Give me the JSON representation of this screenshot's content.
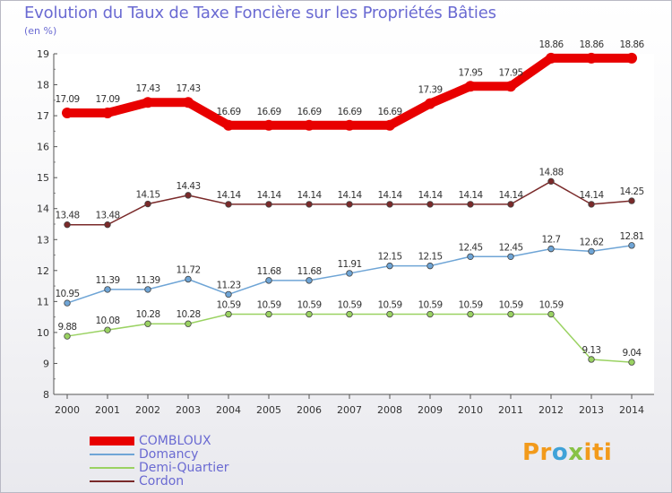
{
  "header": {
    "title": "Evolution du Taux de Taxe Foncière sur les Propriétés Bâties",
    "subtitle": "(en %)"
  },
  "logo": {
    "parts": [
      "Pr",
      "o",
      "x",
      "iti"
    ]
  },
  "chart_data": {
    "type": "line",
    "title": "Evolution du Taux de Taxe Foncière sur les Propriétés Bâties",
    "ylabel": "(en %)",
    "xlabel": "",
    "ylim": [
      8,
      19
    ],
    "yticks": [
      "8",
      "9",
      "10",
      "11",
      "12",
      "13",
      "14",
      "15",
      "16",
      "17",
      "18",
      "19"
    ],
    "categories": [
      "2000",
      "2001",
      "2002",
      "2003",
      "2004",
      "2005",
      "2006",
      "2007",
      "2008",
      "2009",
      "2010",
      "2011",
      "2012",
      "2013",
      "2014"
    ],
    "series": [
      {
        "name": "COMBLOUX",
        "color": "#e80000",
        "emphasis": true,
        "values": [
          17.09,
          17.09,
          17.43,
          17.43,
          16.69,
          16.69,
          16.69,
          16.69,
          16.69,
          17.39,
          17.95,
          17.95,
          18.86,
          18.86,
          18.86
        ],
        "labels": [
          "17.09",
          "17.09",
          "17.43",
          "17.43",
          "16.69",
          "16.69",
          "16.69",
          "16.69",
          "16.69",
          "17.39",
          "17.95",
          "17.95",
          "18.86",
          "18.86",
          "18.86"
        ]
      },
      {
        "name": "Domancy",
        "color": "#6fa5d6",
        "emphasis": false,
        "values": [
          10.95,
          11.39,
          11.39,
          11.72,
          11.23,
          11.68,
          11.68,
          11.91,
          12.15,
          12.15,
          12.45,
          12.45,
          12.7,
          12.62,
          12.81
        ],
        "labels": [
          "10.95",
          "11.39",
          "11.39",
          "11.72",
          "11.23",
          "11.68",
          "11.68",
          "11.91",
          "12.15",
          "12.15",
          "12.45",
          "12.45",
          "12.7",
          "12.62",
          "12.81"
        ]
      },
      {
        "name": "Demi-Quartier",
        "color": "#9ad262",
        "emphasis": false,
        "values": [
          9.88,
          10.08,
          10.28,
          10.28,
          10.59,
          10.59,
          10.59,
          10.59,
          10.59,
          10.59,
          10.59,
          10.59,
          10.59,
          9.13,
          9.04
        ],
        "labels": [
          "9.88",
          "10.08",
          "10.28",
          "10.28",
          "10.59",
          "10.59",
          "10.59",
          "10.59",
          "10.59",
          "10.59",
          "10.59",
          "10.59",
          "10.59",
          "9.13",
          "9.04"
        ]
      },
      {
        "name": "Cordon",
        "color": "#7a2a2a",
        "emphasis": false,
        "values": [
          13.48,
          13.48,
          14.15,
          14.43,
          14.14,
          14.14,
          14.14,
          14.14,
          14.14,
          14.14,
          14.14,
          14.14,
          14.88,
          14.14,
          14.25
        ],
        "labels": [
          "13.48",
          "13.48",
          "14.15",
          "14.43",
          "14.14",
          "14.14",
          "14.14",
          "14.14",
          "14.14",
          "14.14",
          "14.14",
          "14.14",
          "14.88",
          "14.14",
          "14.25"
        ]
      }
    ],
    "legend_position": "bottom-left"
  }
}
